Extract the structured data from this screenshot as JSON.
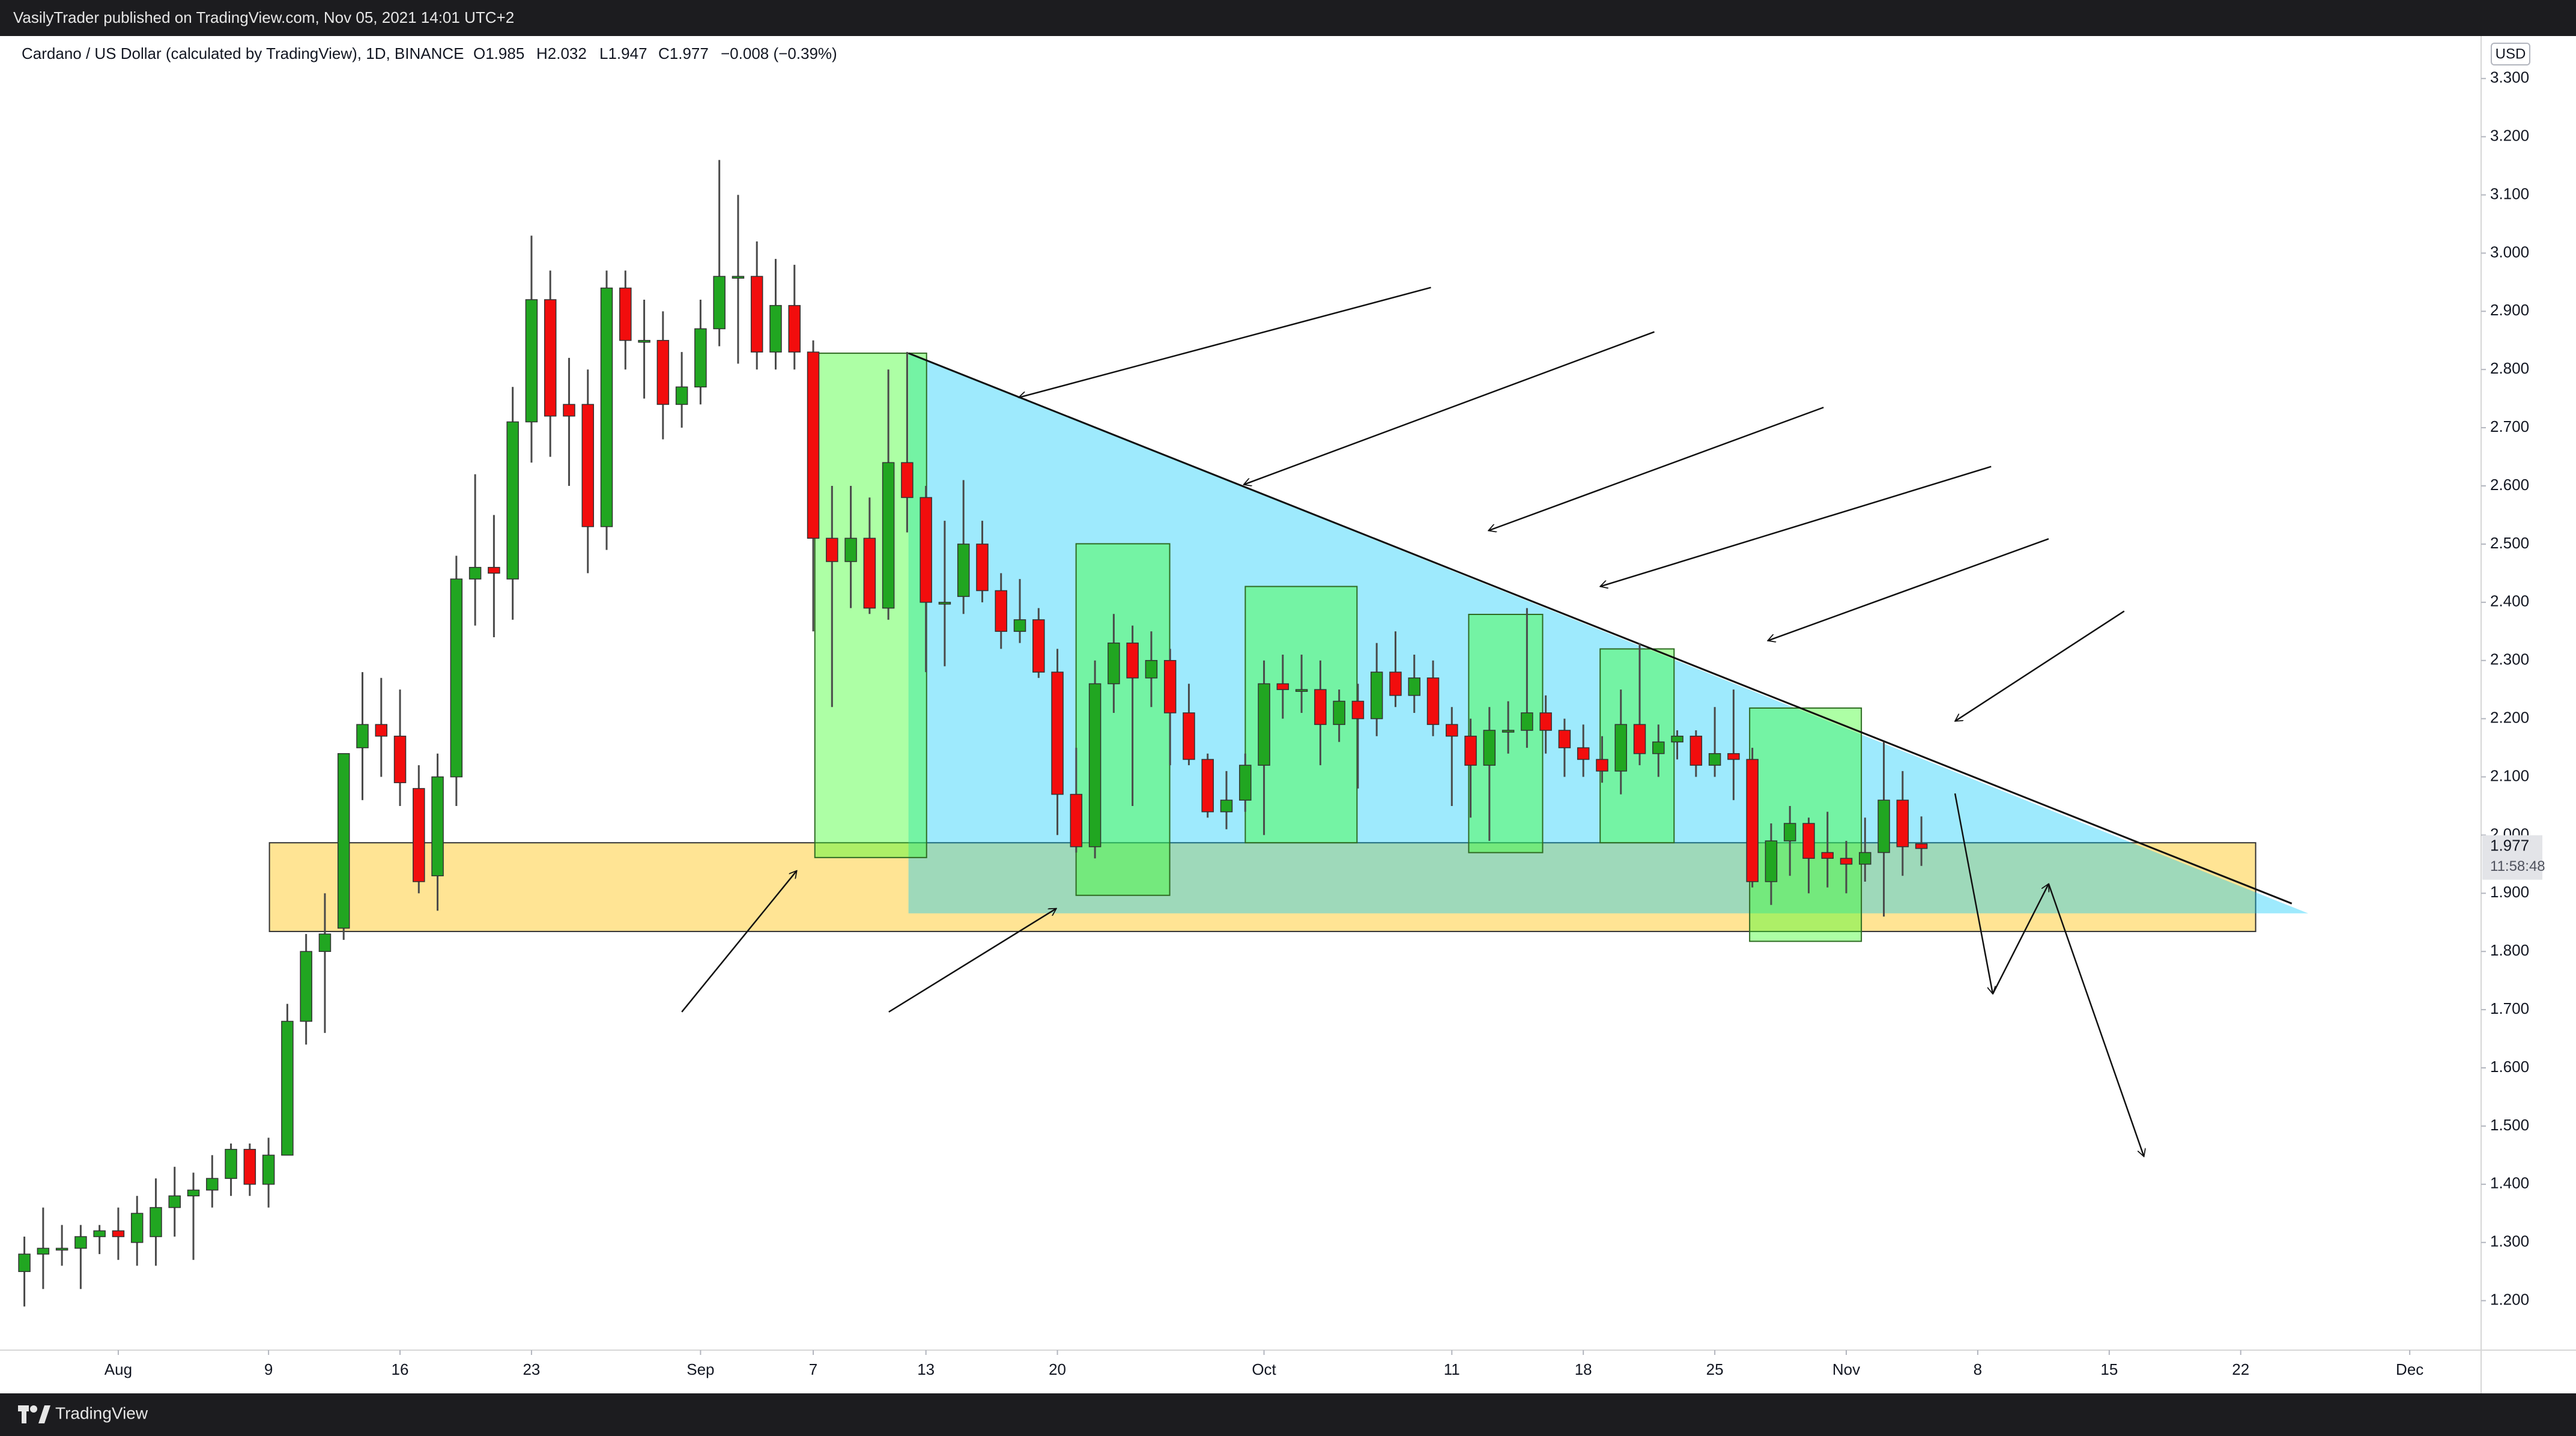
{
  "header": {
    "text": "VasilyTrader published on TradingView.com, Nov 05, 2021 14:01 UTC+2"
  },
  "footer": {
    "brand": "TradingView"
  },
  "chart_data": {
    "type": "candlestick",
    "legend": {
      "symbol": "Cardano / US Dollar (calculated by TradingView), 1D, BINANCE",
      "open": "O1.985",
      "high": "H2.032",
      "low": "L1.947",
      "close": "C1.977",
      "change": "−0.008 (−0.39%)"
    },
    "currency": "USD",
    "last_price_label": "1.977",
    "countdown": "11:58:48",
    "up_color": "#21a621",
    "down_color": "#f20d0d",
    "wick_color": "#4a4a4a",
    "x": [
      "2021-07-27",
      "2021-07-28",
      "2021-07-29",
      "2021-07-30",
      "2021-07-31",
      "2021-08-01",
      "2021-08-02",
      "2021-08-03",
      "2021-08-04",
      "2021-08-05",
      "2021-08-06",
      "2021-08-07",
      "2021-08-08",
      "2021-08-09",
      "2021-08-10",
      "2021-08-11",
      "2021-08-12",
      "2021-08-13",
      "2021-08-14",
      "2021-08-15",
      "2021-08-16",
      "2021-08-17",
      "2021-08-18",
      "2021-08-19",
      "2021-08-20",
      "2021-08-21",
      "2021-08-22",
      "2021-08-23",
      "2021-08-24",
      "2021-08-25",
      "2021-08-26",
      "2021-08-27",
      "2021-08-28",
      "2021-08-29",
      "2021-08-30",
      "2021-08-31",
      "2021-09-01",
      "2021-09-02",
      "2021-09-03",
      "2021-09-04",
      "2021-09-05",
      "2021-09-06",
      "2021-09-07",
      "2021-09-08",
      "2021-09-09",
      "2021-09-10",
      "2021-09-11",
      "2021-09-12",
      "2021-09-13",
      "2021-09-14",
      "2021-09-15",
      "2021-09-16",
      "2021-09-17",
      "2021-09-18",
      "2021-09-19",
      "2021-09-20",
      "2021-09-21",
      "2021-09-22",
      "2021-09-23",
      "2021-09-24",
      "2021-09-25",
      "2021-09-26",
      "2021-09-27",
      "2021-09-28",
      "2021-09-29",
      "2021-09-30",
      "2021-10-01",
      "2021-10-02",
      "2021-10-03",
      "2021-10-04",
      "2021-10-05",
      "2021-10-06",
      "2021-10-07",
      "2021-10-08",
      "2021-10-09",
      "2021-10-10",
      "2021-10-11",
      "2021-10-12",
      "2021-10-13",
      "2021-10-14",
      "2021-10-15",
      "2021-10-16",
      "2021-10-17",
      "2021-10-18",
      "2021-10-19",
      "2021-10-20",
      "2021-10-21",
      "2021-10-22",
      "2021-10-23",
      "2021-10-24",
      "2021-10-25",
      "2021-10-26",
      "2021-10-27",
      "2021-10-28",
      "2021-10-29",
      "2021-10-30",
      "2021-10-31",
      "2021-11-01",
      "2021-11-02",
      "2021-11-03",
      "2021-11-04",
      "2021-11-05"
    ],
    "open": [
      1.25,
      1.28,
      1.29,
      1.29,
      1.31,
      1.32,
      1.3,
      1.31,
      1.36,
      1.38,
      1.39,
      1.41,
      1.46,
      1.4,
      1.45,
      1.68,
      1.8,
      1.84,
      2.15,
      2.19,
      2.17,
      2.08,
      1.93,
      2.1,
      2.44,
      2.46,
      2.44,
      2.71,
      2.92,
      2.74,
      2.74,
      2.53,
      2.94,
      2.85,
      2.85,
      2.74,
      2.77,
      2.87,
      2.96,
      2.96,
      2.83,
      2.91,
      2.83,
      2.51,
      2.47,
      2.51,
      2.39,
      2.64,
      2.58,
      2.4,
      2.41,
      2.5,
      2.42,
      2.35,
      2.37,
      2.28,
      2.07,
      1.98,
      2.26,
      2.33,
      2.27,
      2.3,
      2.21,
      2.13,
      2.04,
      2.06,
      2.12,
      2.26,
      2.25,
      2.25,
      2.19,
      2.23,
      2.2,
      2.28,
      2.24,
      2.27,
      2.19,
      2.17,
      2.12,
      2.18,
      2.18,
      2.21,
      2.18,
      2.15,
      2.13,
      2.11,
      2.19,
      2.14,
      2.16,
      2.17,
      2.12,
      2.14,
      2.13,
      1.92,
      1.99,
      2.02,
      1.97,
      1.96,
      1.95,
      1.97,
      2.06,
      1.985
    ],
    "high": [
      1.31,
      1.36,
      1.33,
      1.33,
      1.33,
      1.36,
      1.38,
      1.41,
      1.43,
      1.42,
      1.45,
      1.47,
      1.47,
      1.48,
      1.71,
      1.83,
      1.9,
      2.14,
      2.28,
      2.27,
      2.25,
      2.12,
      2.14,
      2.48,
      2.62,
      2.55,
      2.77,
      3.03,
      2.97,
      2.82,
      2.8,
      2.97,
      2.97,
      2.92,
      2.9,
      2.83,
      2.92,
      3.16,
      3.1,
      3.02,
      2.99,
      2.98,
      2.85,
      2.6,
      2.6,
      2.58,
      2.8,
      2.83,
      2.6,
      2.54,
      2.61,
      2.54,
      2.45,
      2.44,
      2.39,
      2.32,
      2.15,
      2.3,
      2.38,
      2.36,
      2.35,
      2.32,
      2.26,
      2.14,
      2.11,
      2.14,
      2.3,
      2.31,
      2.31,
      2.3,
      2.25,
      2.26,
      2.33,
      2.35,
      2.31,
      2.3,
      2.22,
      2.2,
      2.22,
      2.23,
      2.39,
      2.24,
      2.2,
      2.19,
      2.17,
      2.25,
      2.33,
      2.19,
      2.18,
      2.18,
      2.22,
      2.25,
      2.15,
      2.02,
      2.05,
      2.03,
      2.04,
      1.99,
      2.03,
      2.16,
      2.11,
      2.032
    ],
    "low": [
      1.19,
      1.22,
      1.26,
      1.22,
      1.28,
      1.27,
      1.26,
      1.26,
      1.31,
      1.27,
      1.36,
      1.38,
      1.38,
      1.36,
      1.45,
      1.64,
      1.66,
      1.82,
      2.06,
      2.1,
      2.05,
      1.9,
      1.87,
      2.05,
      2.36,
      2.34,
      2.37,
      2.64,
      2.65,
      2.6,
      2.45,
      2.49,
      2.8,
      2.75,
      2.68,
      2.7,
      2.74,
      2.84,
      2.81,
      2.8,
      2.8,
      2.8,
      2.35,
      2.22,
      2.39,
      2.38,
      2.37,
      2.52,
      2.28,
      2.29,
      2.38,
      2.4,
      2.32,
      2.33,
      2.27,
      2.0,
      1.97,
      1.96,
      2.21,
      2.05,
      2.22,
      2.12,
      2.12,
      2.03,
      2.01,
      2.04,
      2.0,
      2.2,
      2.21,
      2.12,
      2.16,
      2.08,
      2.17,
      2.22,
      2.21,
      2.17,
      2.05,
      2.03,
      1.99,
      2.14,
      2.15,
      2.14,
      2.1,
      2.1,
      2.09,
      2.07,
      2.12,
      2.1,
      2.13,
      2.1,
      2.1,
      2.06,
      1.91,
      1.88,
      1.93,
      1.9,
      1.91,
      1.9,
      1.92,
      1.86,
      1.93,
      1.947
    ],
    "close": [
      1.28,
      1.29,
      1.29,
      1.31,
      1.32,
      1.31,
      1.35,
      1.36,
      1.38,
      1.39,
      1.41,
      1.46,
      1.4,
      1.45,
      1.68,
      1.8,
      1.83,
      2.14,
      2.19,
      2.17,
      2.09,
      1.92,
      2.1,
      2.44,
      2.46,
      2.45,
      2.71,
      2.92,
      2.72,
      2.72,
      2.53,
      2.94,
      2.85,
      2.85,
      2.74,
      2.77,
      2.87,
      2.96,
      2.96,
      2.83,
      2.91,
      2.83,
      2.51,
      2.47,
      2.51,
      2.39,
      2.64,
      2.58,
      2.4,
      2.4,
      2.5,
      2.42,
      2.35,
      2.37,
      2.28,
      2.07,
      1.98,
      2.26,
      2.33,
      2.27,
      2.3,
      2.21,
      2.13,
      2.04,
      2.06,
      2.12,
      2.26,
      2.25,
      2.25,
      2.19,
      2.23,
      2.2,
      2.28,
      2.24,
      2.27,
      2.19,
      2.17,
      2.12,
      2.18,
      2.18,
      2.21,
      2.18,
      2.15,
      2.13,
      2.11,
      2.19,
      2.14,
      2.16,
      2.17,
      2.12,
      2.14,
      2.13,
      1.92,
      1.99,
      2.02,
      1.96,
      1.96,
      1.95,
      1.97,
      2.06,
      1.98,
      1.977
    ],
    "xlim": [
      "2021-07-26",
      "2021-12-04"
    ],
    "xticks": [
      {
        "value": "2021-08-01",
        "label": "Aug"
      },
      {
        "value": "2021-08-09",
        "label": "9"
      },
      {
        "value": "2021-08-16",
        "label": "16"
      },
      {
        "value": "2021-08-23",
        "label": "23"
      },
      {
        "value": "2021-09-01",
        "label": "Sep"
      },
      {
        "value": "2021-09-07",
        "label": "7"
      },
      {
        "value": "2021-09-13",
        "label": "13"
      },
      {
        "value": "2021-09-20",
        "label": "20"
      },
      {
        "value": "2021-10-01",
        "label": "Oct"
      },
      {
        "value": "2021-10-11",
        "label": "11"
      },
      {
        "value": "2021-10-18",
        "label": "18"
      },
      {
        "value": "2021-10-25",
        "label": "25"
      },
      {
        "value": "2021-11-01",
        "label": "Nov"
      },
      {
        "value": "2021-11-08",
        "label": "8"
      },
      {
        "value": "2021-11-15",
        "label": "15"
      },
      {
        "value": "2021-11-22",
        "label": "22"
      },
      {
        "value": "2021-12-01",
        "label": "Dec"
      }
    ],
    "ylim": [
      1.115,
      3.373
    ],
    "yticks": [
      {
        "value": 1.2,
        "label": "1.200"
      },
      {
        "value": 1.3,
        "label": "1.300"
      },
      {
        "value": 1.4,
        "label": "1.400"
      },
      {
        "value": 1.5,
        "label": "1.500"
      },
      {
        "value": 1.6,
        "label": "1.600"
      },
      {
        "value": 1.7,
        "label": "1.700"
      },
      {
        "value": 1.8,
        "label": "1.800"
      },
      {
        "value": 1.9,
        "label": "1.900"
      },
      {
        "value": 2.0,
        "label": "2.000"
      },
      {
        "value": 2.1,
        "label": "2.100"
      },
      {
        "value": 2.2,
        "label": "2.200"
      },
      {
        "value": 2.3,
        "label": "2.300"
      },
      {
        "value": 2.4,
        "label": "2.400"
      },
      {
        "value": 2.5,
        "label": "2.500"
      },
      {
        "value": 2.6,
        "label": "2.600"
      },
      {
        "value": 2.7,
        "label": "2.700"
      },
      {
        "value": 2.8,
        "label": "2.800"
      },
      {
        "value": 2.9,
        "label": "2.900"
      },
      {
        "value": 3.0,
        "label": "3.000"
      },
      {
        "value": 3.1,
        "label": "3.100"
      },
      {
        "value": 3.2,
        "label": "3.200"
      },
      {
        "value": 3.3,
        "label": "3.300"
      }
    ],
    "grid": false
  }
}
